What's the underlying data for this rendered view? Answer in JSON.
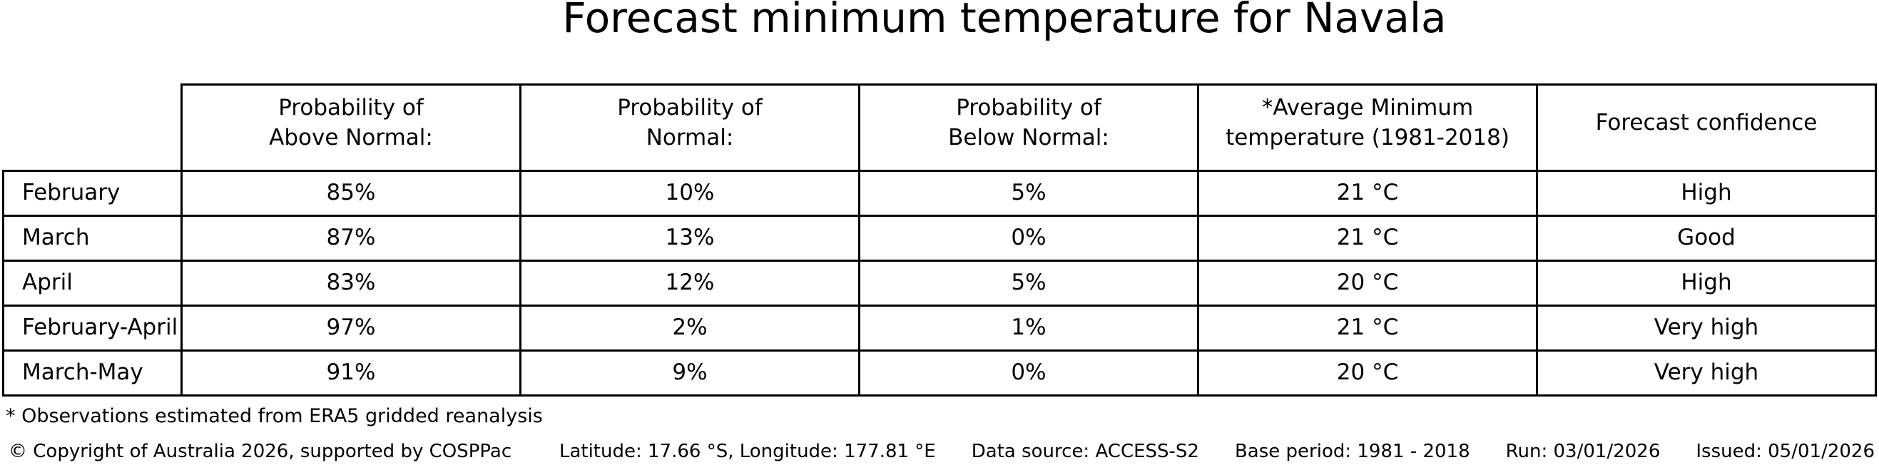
{
  "title": "Forecast minimum temperature for Navala",
  "chart_data": {
    "type": "table",
    "title": "Forecast minimum temperature for Navala",
    "columns": [
      "Probability of\nAbove Normal:",
      "Probability of\nNormal:",
      "Probability of\nBelow Normal:",
      "*Average Minimum\ntemperature (1981-2018)",
      "Forecast confidence"
    ],
    "row_labels": [
      "February",
      "March",
      "April",
      "February-April",
      "March-May"
    ],
    "cells": [
      [
        "85%",
        "10%",
        "5%",
        "21 °C",
        "High"
      ],
      [
        "87%",
        "13%",
        "0%",
        "21 °C",
        "Good"
      ],
      [
        "83%",
        "12%",
        "5%",
        "20 °C",
        "High"
      ],
      [
        "97%",
        "2%",
        "1%",
        "21 °C",
        "Very high"
      ],
      [
        "91%",
        "9%",
        "0%",
        "20 °C",
        "Very high"
      ]
    ]
  },
  "footnote": "* Observations estimated from ERA5 gridded reanalysis",
  "footer": {
    "copyright": "© Copyright of Australia 2026, supported by COSPPac",
    "location": "Latitude: 17.66 °S, Longitude: 177.81 °E",
    "data_source": "Data source: ACCESS-S2",
    "base_period": "Base period: 1981 - 2018",
    "run": "Run: 03/01/2026",
    "issued": "Issued: 05/01/2026"
  }
}
